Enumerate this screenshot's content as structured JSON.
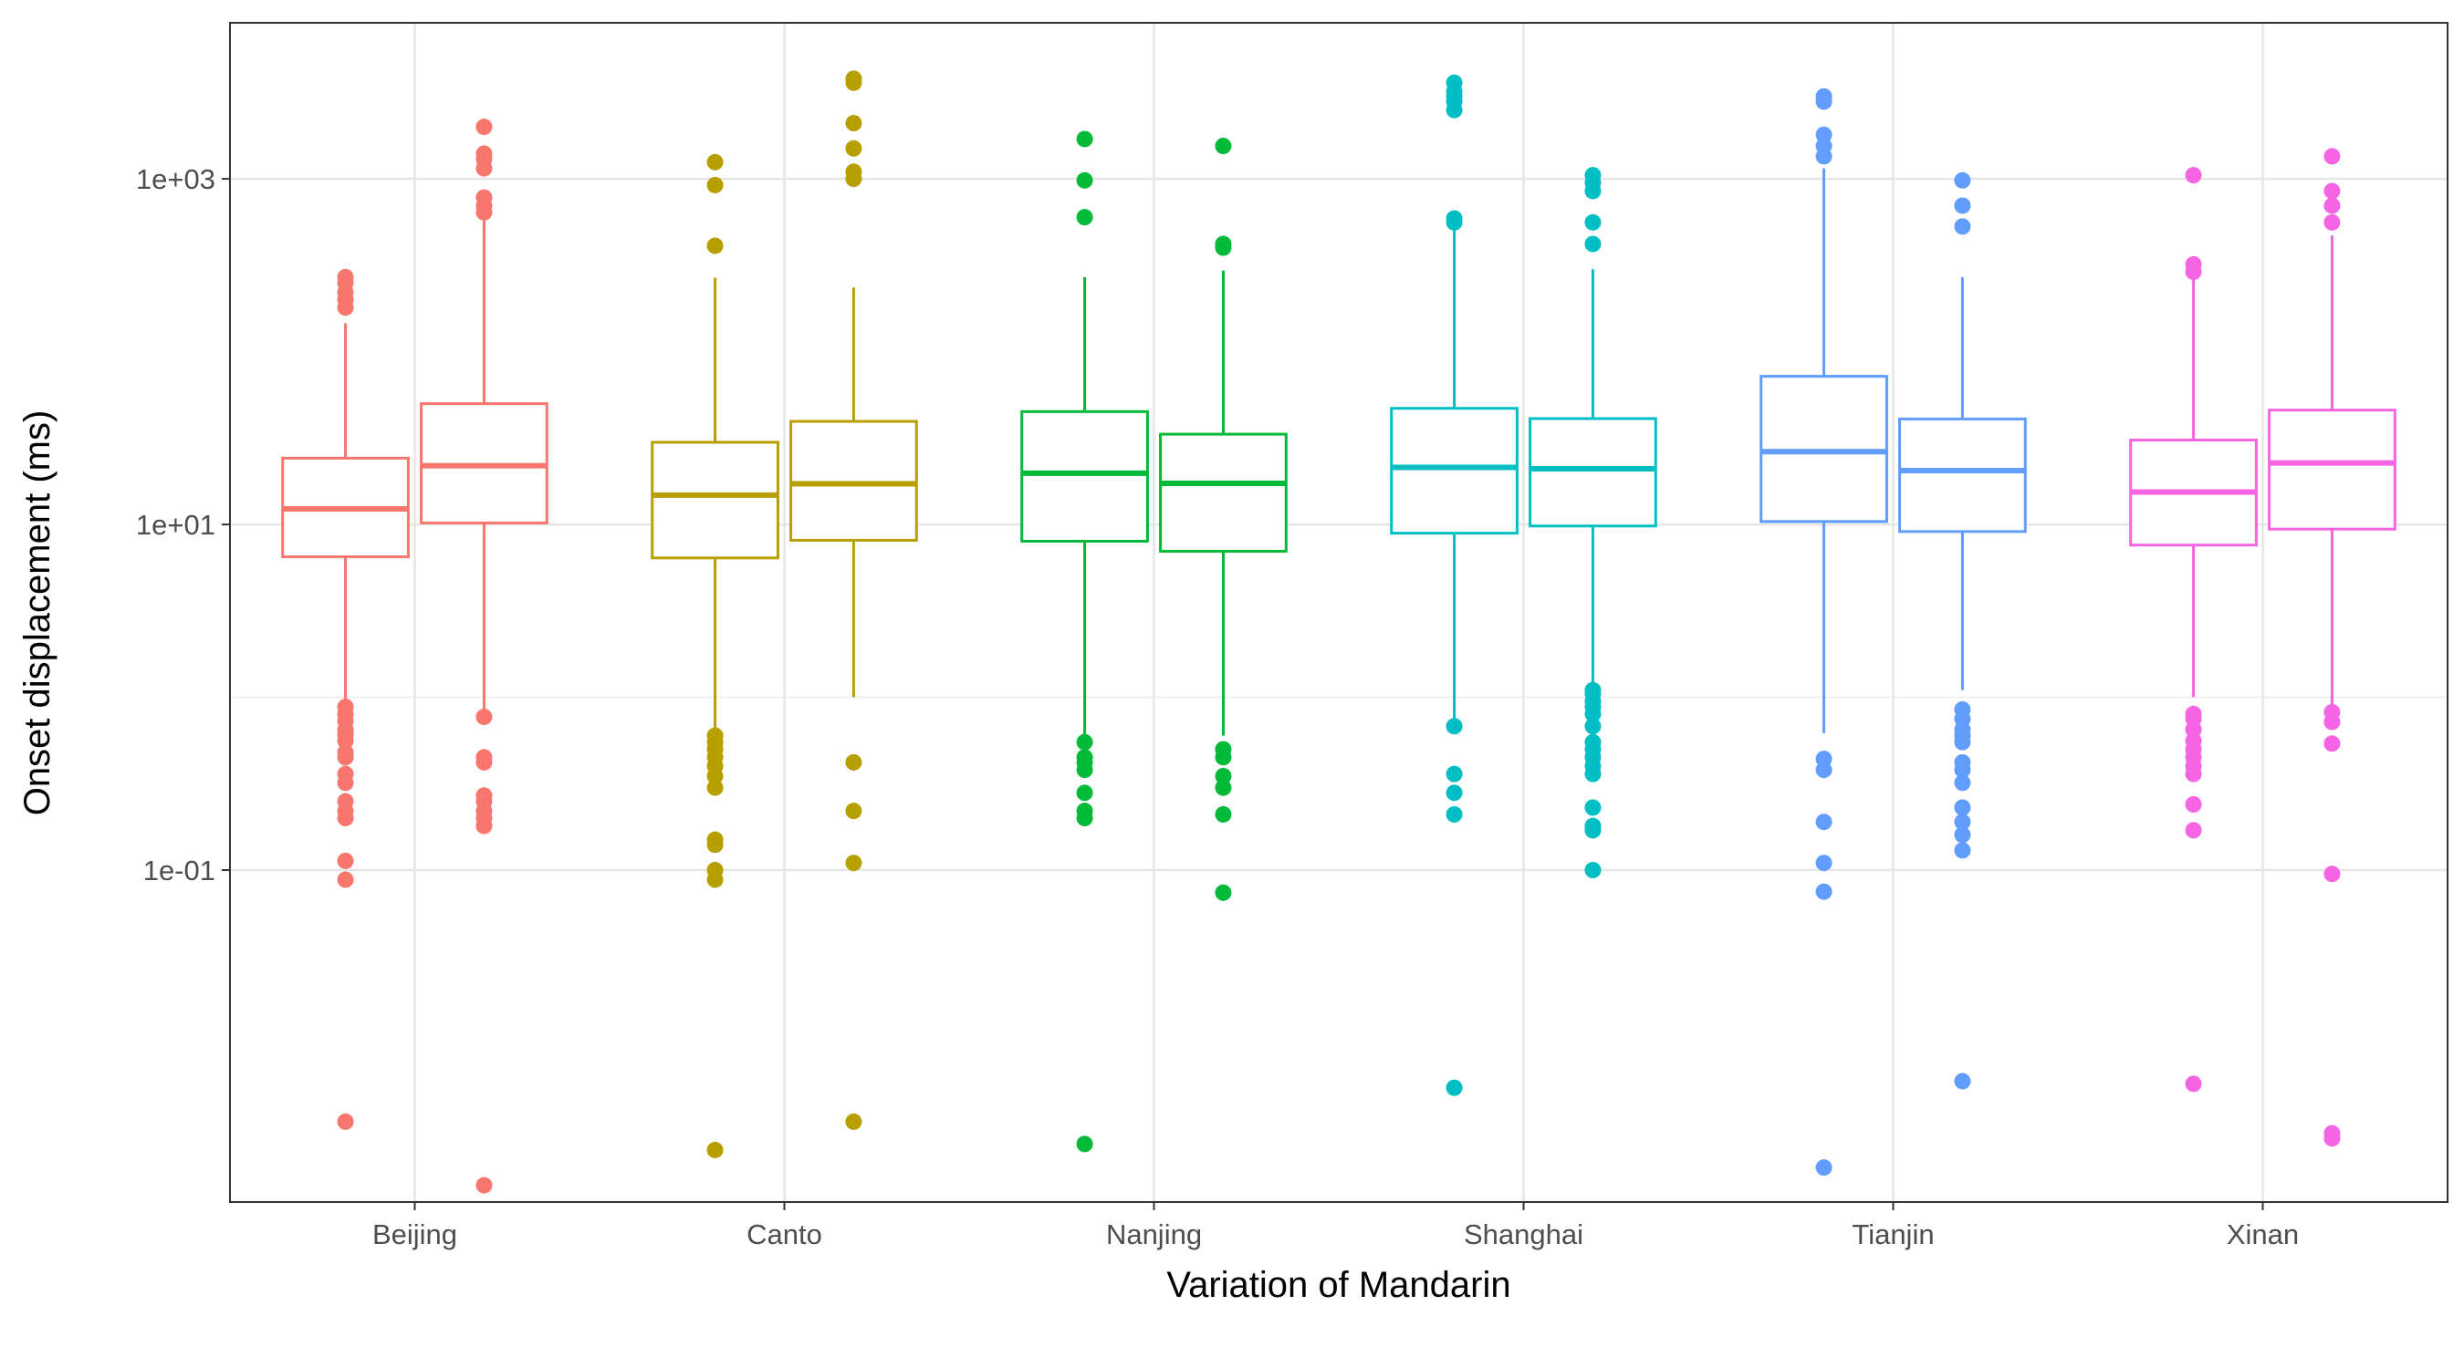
{
  "chart_data": {
    "type": "box",
    "xlabel": "Variation of Mandarin",
    "ylabel": "Onset displacement (ms)",
    "y_scale": "log10",
    "ylim": [
      0.0012,
      8000
    ],
    "grid": true,
    "legend": "none",
    "y_ticks": [
      {
        "value": 0.1,
        "label": "1e-01"
      },
      {
        "value": 10,
        "label": "1e+01"
      },
      {
        "value": 1000,
        "label": "1e+03"
      }
    ],
    "categories": [
      "Beijing",
      "Canto",
      "Nanjing",
      "Shanghai",
      "Tianjin",
      "Xinan"
    ],
    "colors": [
      "#F8766D",
      "#B79F00",
      "#00BA38",
      "#00BFC4",
      "#619CFF",
      "#F564E3"
    ],
    "boxes": [
      {
        "category": "Beijing",
        "sub": 0,
        "whisker_low": 0.85,
        "q1": 6.5,
        "median": 12.3,
        "q3": 24.2,
        "whisker_high": 146,
        "outliers": [
          0.0035,
          0.088,
          0.113,
          0.2,
          0.22,
          0.25,
          0.32,
          0.36,
          0.45,
          0.48,
          0.56,
          0.61,
          0.65,
          0.73,
          0.8,
          0.88,
          180,
          200,
          220,
          250,
          270
        ]
      },
      {
        "category": "Beijing",
        "sub": 1,
        "whisker_low": 0.8,
        "q1": 10.2,
        "median": 21.9,
        "q3": 50,
        "whisker_high": 610,
        "outliers": [
          0.0015,
          0.18,
          0.2,
          0.22,
          0.25,
          0.27,
          0.42,
          0.45,
          0.77,
          640,
          700,
          780,
          1150,
          1300,
          1400,
          2000
        ]
      },
      {
        "category": "Canto",
        "sub": 0,
        "whisker_low": 0.6,
        "q1": 6.4,
        "median": 14.8,
        "q3": 29.9,
        "whisker_high": 268,
        "outliers": [
          0.0024,
          0.088,
          0.1,
          0.14,
          0.15,
          0.3,
          0.35,
          0.4,
          0.45,
          0.5,
          0.55,
          0.6,
          410,
          920,
          1250
        ]
      },
      {
        "category": "Canto",
        "sub": 1,
        "whisker_low": 1.0,
        "q1": 8.1,
        "median": 17.2,
        "q3": 39.5,
        "whisker_high": 235,
        "outliers": [
          0.0035,
          0.11,
          0.22,
          0.42,
          1000,
          1100,
          1500,
          2100,
          3600,
          3800
        ]
      },
      {
        "category": "Nanjing",
        "sub": 0,
        "whisker_low": 0.6,
        "q1": 8.0,
        "median": 19.8,
        "q3": 45,
        "whisker_high": 270,
        "outliers": [
          0.0026,
          0.2,
          0.22,
          0.28,
          0.38,
          0.42,
          0.45,
          0.55,
          600,
          980,
          1700
        ]
      },
      {
        "category": "Nanjing",
        "sub": 1,
        "whisker_low": 0.6,
        "q1": 7.0,
        "median": 17.3,
        "q3": 33.3,
        "whisker_high": 295,
        "outliers": [
          0.074,
          0.21,
          0.3,
          0.35,
          0.45,
          0.5,
          400,
          420,
          1550
        ]
      },
      {
        "category": "Shanghai",
        "sub": 0,
        "whisker_low": 0.68,
        "q1": 8.9,
        "median": 21.4,
        "q3": 47,
        "whisker_high": 510,
        "outliers": [
          0.0055,
          0.21,
          0.28,
          0.36,
          0.68,
          560,
          590,
          2500,
          2800,
          3000,
          3200,
          3600
        ]
      },
      {
        "category": "Shanghai",
        "sub": 1,
        "whisker_low": 1.2,
        "q1": 9.8,
        "median": 21,
        "q3": 41,
        "whisker_high": 300,
        "outliers": [
          0.1,
          0.17,
          0.18,
          0.23,
          0.36,
          0.4,
          0.45,
          0.5,
          0.55,
          0.68,
          0.8,
          0.88,
          0.95,
          1.05,
          1.1,
          420,
          560,
          850,
          950,
          1050
        ]
      },
      {
        "category": "Tianjin",
        "sub": 0,
        "whisker_low": 0.62,
        "q1": 10.4,
        "median": 26.4,
        "q3": 72,
        "whisker_high": 1150,
        "outliers": [
          0.0019,
          0.075,
          0.11,
          0.19,
          0.38,
          0.44,
          1350,
          1550,
          1800,
          2800,
          3000
        ]
      },
      {
        "category": "Tianjin",
        "sub": 1,
        "whisker_low": 1.1,
        "q1": 9.1,
        "median": 20.5,
        "q3": 40.8,
        "whisker_high": 270,
        "outliers": [
          0.006,
          0.13,
          0.16,
          0.19,
          0.23,
          0.32,
          0.38,
          0.42,
          0.55,
          0.6,
          0.65,
          0.75,
          0.85,
          530,
          700,
          980
        ]
      },
      {
        "category": "Xinan",
        "sub": 0,
        "whisker_low": 1.0,
        "q1": 7.6,
        "median": 15.4,
        "q3": 30.8,
        "whisker_high": 268,
        "outliers": [
          0.0058,
          0.17,
          0.24,
          0.36,
          0.4,
          0.45,
          0.5,
          0.56,
          0.65,
          0.75,
          0.8,
          290,
          320,
          1050
        ]
      },
      {
        "category": "Xinan",
        "sub": 1,
        "whisker_low": 0.9,
        "q1": 9.4,
        "median": 22.7,
        "q3": 45.9,
        "whisker_high": 470,
        "outliers": [
          0.0028,
          0.003,
          0.095,
          0.54,
          0.72,
          0.82,
          560,
          700,
          850,
          1350
        ]
      }
    ]
  }
}
